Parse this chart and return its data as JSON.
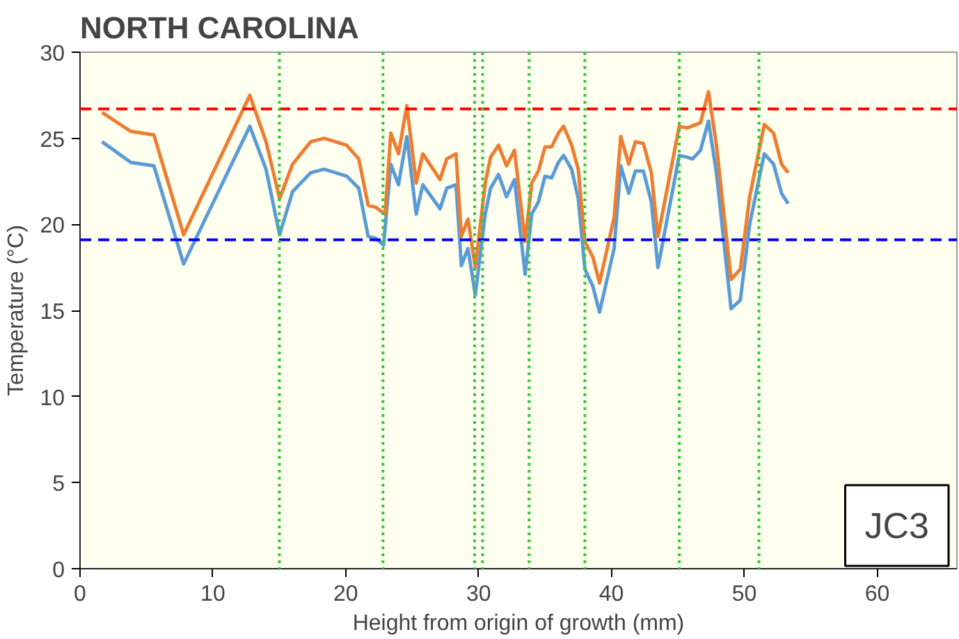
{
  "chart_data": {
    "type": "line",
    "title": "NORTH CAROLINA",
    "xlabel": "Height from origin of growth (mm)",
    "ylabel": "Temperature (°C)",
    "annotations": [
      "JC3"
    ],
    "xlim": [
      0,
      66
    ],
    "ylim": [
      0,
      30
    ],
    "xticks": [
      0,
      10,
      20,
      30,
      40,
      50,
      60
    ],
    "yticks": [
      0,
      5,
      10,
      15,
      20,
      25,
      30
    ],
    "grid": false,
    "marker": "none",
    "line_style": "solid",
    "series": [
      {
        "color": "#5b9bd5",
        "x": [
          1.66,
          3.82,
          5.56,
          7.8,
          12.78,
          14.0,
          15.02,
          16.0,
          17.36,
          18.38,
          20.07,
          20.98,
          21.69,
          22.24,
          22.85,
          23.39,
          23.97,
          24.6,
          25.3,
          25.8,
          27.1,
          27.6,
          28.3,
          28.7,
          29.2,
          29.75,
          30.5,
          30.9,
          31.5,
          32.1,
          32.7,
          33.5,
          34.0,
          34.5,
          35.0,
          35.5,
          36.0,
          36.4,
          37.0,
          37.5,
          38.0,
          38.6,
          39.1,
          40.2,
          40.7,
          41.3,
          41.8,
          42.4,
          43.0,
          43.5,
          45.1,
          45.7,
          46.1,
          46.7,
          47.3,
          47.9,
          49.0,
          49.7,
          50.4,
          51.5,
          52.2,
          52.8,
          53.3
        ],
        "values": [
          24.8,
          23.6,
          23.4,
          17.7,
          25.7,
          23.2,
          19.4,
          21.9,
          23.0,
          23.2,
          22.8,
          22.1,
          19.3,
          19.2,
          18.8,
          23.5,
          22.3,
          25.1,
          20.6,
          22.3,
          20.9,
          22.1,
          22.3,
          17.6,
          18.6,
          15.9,
          20.6,
          22.1,
          22.9,
          21.6,
          22.6,
          17.1,
          20.6,
          21.3,
          22.8,
          22.7,
          23.6,
          24.0,
          23.2,
          21.5,
          17.4,
          16.4,
          14.9,
          18.6,
          23.4,
          21.8,
          23.1,
          23.1,
          21.3,
          17.5,
          24.0,
          23.9,
          23.8,
          24.3,
          26.0,
          23.0,
          15.1,
          15.6,
          20.0,
          24.1,
          23.5,
          21.8,
          21.2
        ]
      },
      {
        "color": "#ed7d31",
        "x": [
          1.66,
          3.82,
          5.56,
          7.8,
          12.78,
          14.0,
          15.02,
          16.0,
          17.36,
          18.38,
          20.07,
          20.98,
          21.69,
          22.24,
          22.96,
          23.39,
          23.97,
          24.6,
          25.3,
          25.8,
          27.1,
          27.6,
          28.3,
          28.7,
          29.2,
          29.75,
          30.5,
          30.9,
          31.5,
          32.1,
          32.7,
          33.5,
          34.0,
          34.5,
          35.0,
          35.5,
          36.0,
          36.4,
          37.0,
          37.5,
          38.0,
          38.6,
          39.1,
          40.2,
          40.7,
          41.3,
          41.8,
          42.4,
          43.0,
          43.5,
          45.1,
          45.7,
          46.7,
          47.3,
          47.9,
          49.0,
          49.7,
          50.4,
          51.5,
          52.2,
          52.8,
          53.3
        ],
        "values": [
          26.5,
          25.4,
          25.2,
          19.4,
          27.5,
          24.8,
          21.5,
          23.5,
          24.8,
          25.0,
          24.6,
          23.8,
          21.1,
          21.0,
          20.6,
          25.3,
          24.1,
          26.9,
          22.4,
          24.1,
          22.6,
          23.8,
          24.1,
          19.3,
          20.3,
          17.5,
          22.4,
          23.9,
          24.6,
          23.4,
          24.3,
          19.0,
          22.4,
          23.1,
          24.5,
          24.5,
          25.3,
          25.7,
          24.6,
          23.2,
          19.0,
          18.1,
          16.6,
          20.4,
          25.1,
          23.5,
          24.8,
          24.7,
          23.0,
          19.3,
          25.7,
          25.6,
          25.9,
          27.7,
          24.6,
          16.8,
          17.4,
          21.6,
          25.8,
          25.3,
          23.5,
          23.0
        ]
      }
    ],
    "ref_lines": [
      {
        "axis": "y",
        "value": 26.7,
        "color": "#ff0000",
        "line_style": "dashed"
      },
      {
        "axis": "y",
        "value": 19.1,
        "color": "#0000ff",
        "line_style": "dashed"
      },
      {
        "axis": "x",
        "value": 15.0,
        "color": "#33cc33",
        "line_style": "dotted"
      },
      {
        "axis": "x",
        "value": 22.8,
        "color": "#33cc33",
        "line_style": "dotted"
      },
      {
        "axis": "x",
        "value": 29.7,
        "color": "#33cc33",
        "line_style": "dotted"
      },
      {
        "axis": "x",
        "value": 30.3,
        "color": "#33cc33",
        "line_style": "dotted"
      },
      {
        "axis": "x",
        "value": 33.8,
        "color": "#33cc33",
        "line_style": "dotted"
      },
      {
        "axis": "x",
        "value": 38.0,
        "color": "#33cc33",
        "line_style": "dotted"
      },
      {
        "axis": "x",
        "value": 45.1,
        "color": "#33cc33",
        "line_style": "dotted"
      },
      {
        "axis": "x",
        "value": 51.1,
        "color": "#33cc33",
        "line_style": "dotted"
      }
    ]
  }
}
